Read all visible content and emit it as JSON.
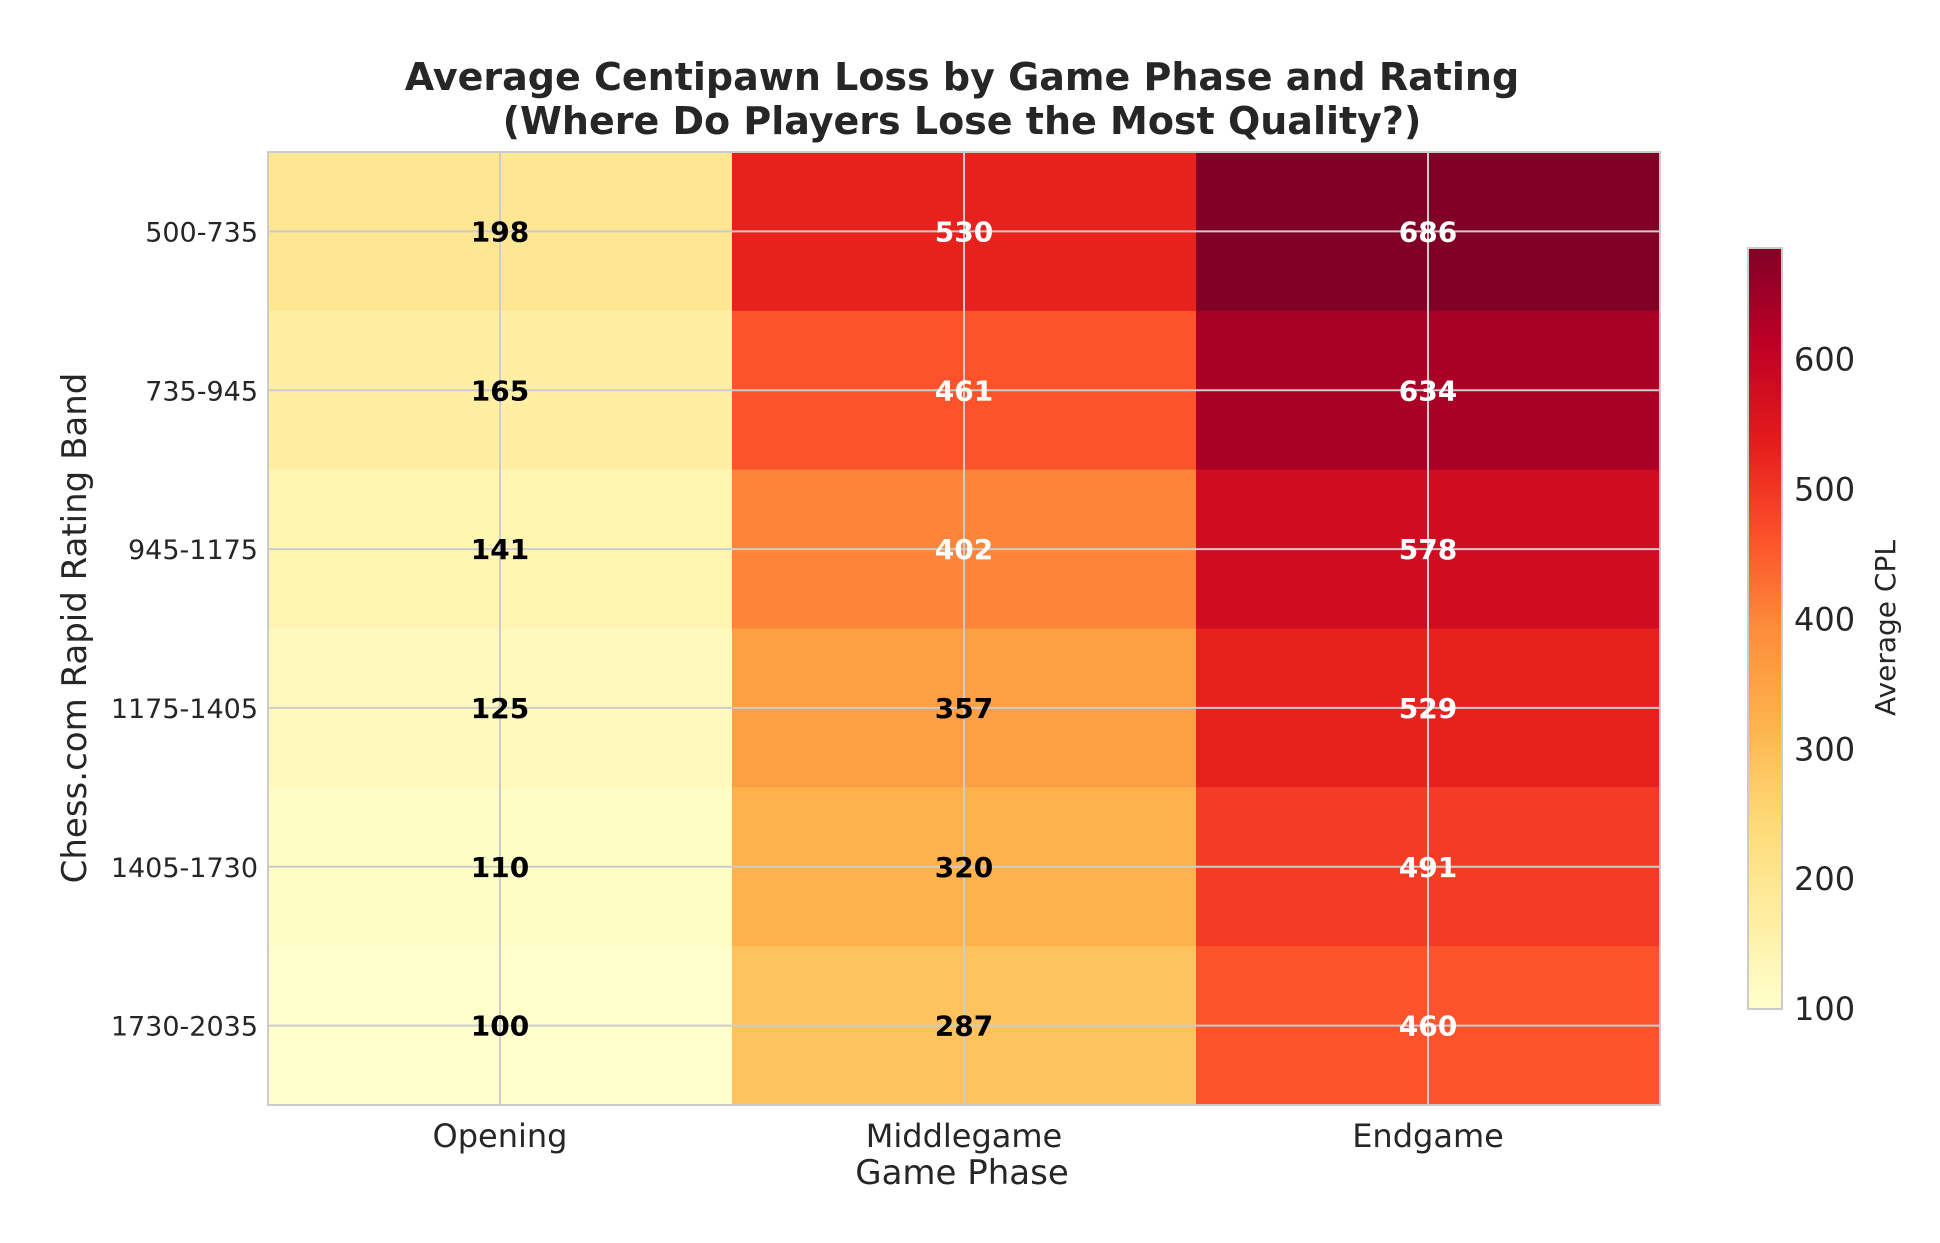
{
  "chart_data": {
    "type": "heatmap",
    "title": "Average Centipawn Loss by Game Phase and Rating",
    "subtitle": "(Where Do Players Lose the Most Quality?)",
    "xlabel": "Game Phase",
    "ylabel": "Chess.com Rapid Rating Band",
    "x_categories": [
      "Opening",
      "Middlegame",
      "Endgame"
    ],
    "y_categories": [
      "500-735",
      "735-945",
      "945-1175",
      "1175-1405",
      "1405-1730",
      "1730-2035"
    ],
    "values": [
      [
        198,
        530,
        686
      ],
      [
        165,
        461,
        634
      ],
      [
        141,
        402,
        578
      ],
      [
        125,
        357,
        529
      ],
      [
        110,
        320,
        491
      ],
      [
        100,
        287,
        460
      ]
    ],
    "colorscale": "YlOrRd",
    "vmin": 100,
    "vmax": 686,
    "colorbar": {
      "label": "Average CPL",
      "ticks": [
        100,
        200,
        300,
        400,
        500,
        600
      ]
    },
    "annotations": "cell values shown in each cell",
    "grid": true
  }
}
